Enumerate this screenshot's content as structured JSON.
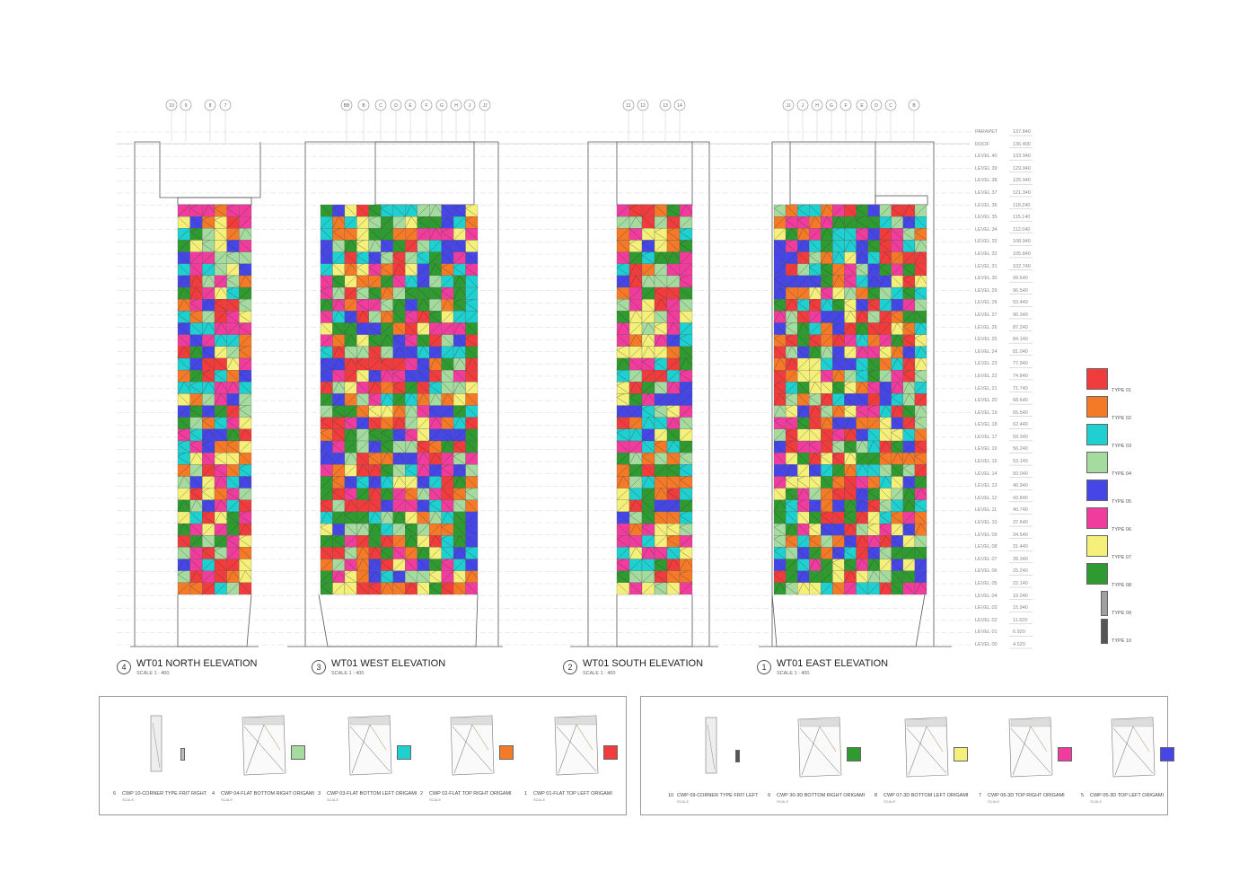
{
  "palette": {
    "type01": "#f03c3c",
    "type02": "#f57a28",
    "type03": "#1fd0d0",
    "type04": "#a6dba0",
    "type05": "#4646e6",
    "type06": "#f03c9c",
    "type07": "#f5f07a",
    "type08": "#2f9a2f",
    "type09": "#a0a0a0",
    "type10": "#555555"
  },
  "gridline_tags": {
    "north": [
      "10",
      "9",
      "8",
      "7"
    ],
    "west": [
      "BB",
      "B",
      "C",
      "D",
      "E",
      "F",
      "G",
      "H",
      "J",
      "JJ"
    ],
    "south": [
      "11",
      "12",
      "13",
      "14"
    ],
    "east": [
      "JJ",
      "J",
      "H",
      "G",
      "F",
      "E",
      "D",
      "C",
      "B"
    ]
  },
  "elevations": [
    {
      "num": "4",
      "title": "WT01 NORTH ELEVATION",
      "scale": "SCALE 1 : 400"
    },
    {
      "num": "3",
      "title": "WT01 WEST ELEVATION",
      "scale": "SCALE 1 : 400"
    },
    {
      "num": "2",
      "title": "WT01 SOUTH ELEVATION",
      "scale": "SCALE 1 : 400"
    },
    {
      "num": "1",
      "title": "WT01 EAST ELEVATION",
      "scale": "SCALE 1 : 400"
    }
  ],
  "levels": [
    {
      "name": "PARAPET",
      "value": "137.840"
    },
    {
      "name": "ROOF",
      "value": "136.400"
    },
    {
      "name": "LEVEL 40",
      "value": "133.940"
    },
    {
      "name": "LEVEL 39",
      "value": "129.940"
    },
    {
      "name": "LEVEL 38",
      "value": "125.940"
    },
    {
      "name": "LEVEL 37",
      "value": "121.340"
    },
    {
      "name": "LEVEL 36",
      "value": "118.240"
    },
    {
      "name": "LEVEL 35",
      "value": "115.140"
    },
    {
      "name": "LEVEL 34",
      "value": "112.040"
    },
    {
      "name": "LEVEL 33",
      "value": "108.940"
    },
    {
      "name": "LEVEL 32",
      "value": "105.840"
    },
    {
      "name": "LEVEL 31",
      "value": "102.740"
    },
    {
      "name": "LEVEL 30",
      "value": "99.640"
    },
    {
      "name": "LEVEL 29",
      "value": "96.540"
    },
    {
      "name": "LEVEL 28",
      "value": "93.440"
    },
    {
      "name": "LEVEL 27",
      "value": "90.340"
    },
    {
      "name": "LEVEL 26",
      "value": "87.240"
    },
    {
      "name": "LEVEL 25",
      "value": "84.140"
    },
    {
      "name": "LEVEL 24",
      "value": "81.040"
    },
    {
      "name": "LEVEL 23",
      "value": "77.940"
    },
    {
      "name": "LEVEL 22",
      "value": "74.840"
    },
    {
      "name": "LEVEL 21",
      "value": "71.740"
    },
    {
      "name": "LEVEL 20",
      "value": "68.640"
    },
    {
      "name": "LEVEL 19",
      "value": "65.540"
    },
    {
      "name": "LEVEL 18",
      "value": "62.440"
    },
    {
      "name": "LEVEL 17",
      "value": "59.340"
    },
    {
      "name": "LEVEL 16",
      "value": "56.240"
    },
    {
      "name": "LEVEL 15",
      "value": "53.140"
    },
    {
      "name": "LEVEL 14",
      "value": "50.040"
    },
    {
      "name": "LEVEL 13",
      "value": "46.940"
    },
    {
      "name": "LEVEL 12",
      "value": "43.840"
    },
    {
      "name": "LEVEL 11",
      "value": "40.740"
    },
    {
      "name": "LEVEL 10",
      "value": "37.640"
    },
    {
      "name": "LEVEL 09",
      "value": "34.540"
    },
    {
      "name": "LEVEL 08",
      "value": "31.440"
    },
    {
      "name": "LEVEL 07",
      "value": "28.340"
    },
    {
      "name": "LEVEL 06",
      "value": "25.240"
    },
    {
      "name": "LEVEL 05",
      "value": "22.140"
    },
    {
      "name": "LEVEL 04",
      "value": "19.040"
    },
    {
      "name": "LEVEL 03",
      "value": "15.940"
    },
    {
      "name": "LEVEL 02",
      "value": "11.620"
    },
    {
      "name": "LEVEL 01",
      "value": "6.920"
    },
    {
      "name": "LEVEL 00",
      "value": "4.520"
    }
  ],
  "legend": [
    {
      "label": "TYPE 01",
      "color": "#f03c3c"
    },
    {
      "label": "TYPE 02",
      "color": "#f57a28"
    },
    {
      "label": "TYPE 03",
      "color": "#1fd0d0"
    },
    {
      "label": "TYPE 04",
      "color": "#a6dba0"
    },
    {
      "label": "TYPE 05",
      "color": "#4646e6"
    },
    {
      "label": "TYPE 06",
      "color": "#f03c9c"
    },
    {
      "label": "TYPE 07",
      "color": "#f5f07a"
    },
    {
      "label": "TYPE 08",
      "color": "#2f9a2f"
    },
    {
      "label": "TYPE 09",
      "color": "#a0a0a0"
    },
    {
      "label": "TYPE 10",
      "color": "#555555"
    }
  ],
  "details_left": [
    {
      "num": "6",
      "caption": "CWP 10-CORNER TYPE FRIT RIGHT",
      "sub": "SCALE",
      "color": "#bbbbbb"
    },
    {
      "num": "4",
      "caption": "CWP 04-FLAT BOTTOM RIGHT ORIGAMI",
      "sub": "SCALE",
      "color": "#a6dba0"
    },
    {
      "num": "3",
      "caption": "CWP 03-FLAT BOTTOM LEFT ORIGAMI",
      "sub": "SCALE",
      "color": "#1fd0d0"
    },
    {
      "num": "2",
      "caption": "CWP 02-FLAT TOP RIGHT ORIGAMI",
      "sub": "SCALE",
      "color": "#f57a28"
    },
    {
      "num": "1",
      "caption": "CWP 01-FLAT TOP LEFT ORIGAMI",
      "sub": "SCALE",
      "color": "#f03c3c"
    }
  ],
  "details_right": [
    {
      "num": "10",
      "caption": "CWP 09-CORNER TYPE FRIT LEFT",
      "sub": "SCALE",
      "color": "#555555"
    },
    {
      "num": "9",
      "caption": "CWP 30-3D BOTTOM RIGHT ORIGAMI",
      "sub": "SCALE",
      "color": "#2f9a2f"
    },
    {
      "num": "8",
      "caption": "CWP 07-3D BOTTOM LEFT ORIGAMI",
      "sub": "SCALE",
      "color": "#f5f07a"
    },
    {
      "num": "7",
      "caption": "CWP 06-3D TOP RIGHT ORIGAMI",
      "sub": "SCALE",
      "color": "#f03c9c"
    },
    {
      "num": "5",
      "caption": "CWP 05-3D TOP LEFT ORIGAMI",
      "sub": "SCALE",
      "color": "#4646e6"
    }
  ]
}
